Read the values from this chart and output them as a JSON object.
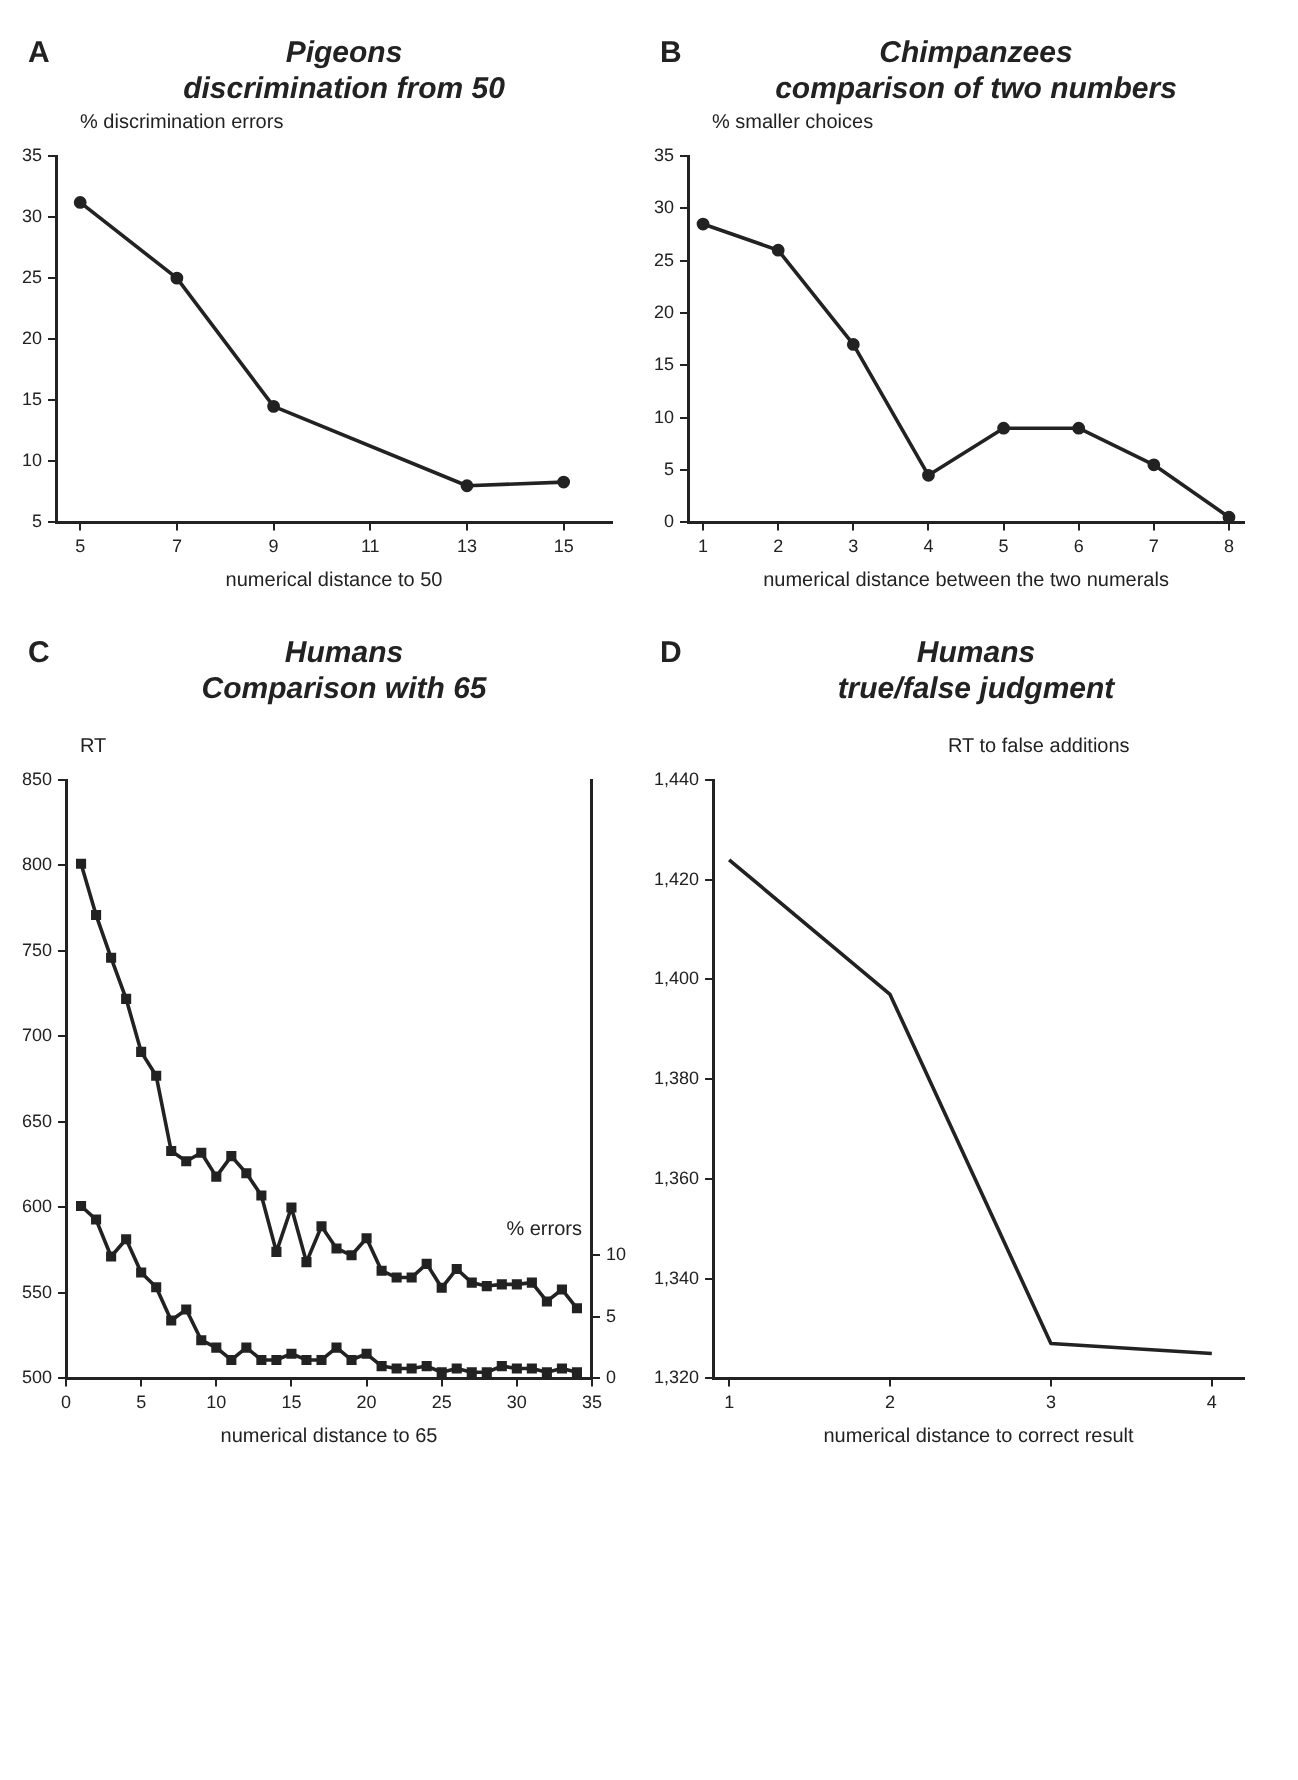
{
  "chart_data": [
    {
      "type": "line",
      "title": "Pigeons",
      "subtitle": "discrimination from 50",
      "ylabel": "% discrimination errors",
      "xlabel": "numerical distance to 50",
      "annotations": [
        "A"
      ],
      "x": [
        5,
        7,
        9,
        13,
        15
      ],
      "series": [
        {
          "color": "#222222",
          "values": [
            31.2,
            25,
            14.5,
            8,
            8.3
          ]
        }
      ],
      "xlim": [
        4.5,
        16
      ],
      "xticks": [
        5,
        7,
        9,
        11,
        13,
        15
      ],
      "ylim": [
        5,
        35
      ],
      "yticks": [
        5,
        10,
        15,
        20,
        25,
        30,
        35
      ],
      "marker": "circle",
      "line_style": "solid"
    },
    {
      "type": "line",
      "title": "Chimpanzees",
      "subtitle": "comparison of two numbers",
      "ylabel": "% smaller choices",
      "xlabel": "numerical distance between the two numerals",
      "annotations": [
        "B"
      ],
      "x": [
        1,
        2,
        3,
        4,
        5,
        6,
        7,
        8
      ],
      "series": [
        {
          "color": "#222222",
          "values": [
            28.5,
            26,
            17,
            4.5,
            9,
            9,
            5.5,
            0.5
          ]
        }
      ],
      "xlim": [
        0.8,
        8.2
      ],
      "xticks": [
        1,
        2,
        3,
        4,
        5,
        6,
        7,
        8
      ],
      "ylim": [
        0,
        35
      ],
      "yticks": [
        0,
        5,
        10,
        15,
        20,
        25,
        30,
        35
      ],
      "marker": "circle",
      "line_style": "solid"
    },
    {
      "type": "line",
      "title": "Humans",
      "subtitle": "Comparison with 65",
      "ylabel": "RT",
      "y2label": "% errors",
      "xlabel": "numerical distance to 65",
      "annotations": [
        "C"
      ],
      "x": [
        1,
        2,
        3,
        4,
        5,
        6,
        7,
        8,
        9,
        10,
        11,
        12,
        13,
        14,
        15,
        16,
        17,
        18,
        19,
        20,
        21,
        22,
        23,
        24,
        25,
        26,
        27,
        28,
        29,
        30,
        31,
        32,
        33,
        34
      ],
      "series": [
        {
          "color": "#222222",
          "values": [
            801,
            771,
            746,
            722,
            691,
            677,
            633,
            627,
            632,
            618,
            630,
            620,
            607,
            574,
            600,
            568,
            589,
            576,
            572,
            582,
            563,
            559,
            559,
            567,
            553,
            564,
            556,
            554,
            555,
            555,
            556,
            545,
            552,
            541
          ]
        },
        {
          "color": "#222222",
          "axis": "y2",
          "values": [
            14,
            12.9,
            9.9,
            11.3,
            8.6,
            7.4,
            4.7,
            5.6,
            3.1,
            2.5,
            1.5,
            2.5,
            1.5,
            1.5,
            2,
            1.5,
            1.5,
            2.5,
            1.5,
            2,
            1,
            0.8,
            0.8,
            1,
            0.5,
            0.8,
            0.5,
            0.5,
            1,
            0.8,
            0.8,
            0.5,
            0.8,
            0.5
          ]
        }
      ],
      "xlim": [
        0,
        35
      ],
      "xticks": [
        0,
        5,
        10,
        15,
        20,
        25,
        30,
        35
      ],
      "ylim": [
        500,
        850
      ],
      "yticks": [
        500,
        550,
        600,
        650,
        700,
        750,
        800,
        850
      ],
      "y2lim": [
        0,
        48.6
      ],
      "y2ticks": [
        0,
        5,
        10
      ],
      "marker": "square",
      "line_style": "solid"
    },
    {
      "type": "line",
      "title": "Humans",
      "subtitle": "true/false judgment",
      "ylabel": "RT to false additions",
      "xlabel": "numerical distance to correct result",
      "annotations": [
        "D"
      ],
      "x": [
        1,
        2,
        3,
        4
      ],
      "series": [
        {
          "color": "#222222",
          "values": [
            1424,
            1397,
            1327,
            1325
          ]
        }
      ],
      "xlim": [
        0.9,
        4.2
      ],
      "xticks": [
        1,
        2,
        3,
        4
      ],
      "ylim": [
        1320,
        1440
      ],
      "yticks": [
        {
          "value": 1320,
          "label": "1,320"
        },
        {
          "value": 1340,
          "label": "1,340"
        },
        {
          "value": 1360,
          "label": "1,360"
        },
        {
          "value": 1380,
          "label": "1,380"
        },
        {
          "value": 1400,
          "label": "1,400"
        },
        {
          "value": 1420,
          "label": "1,420"
        },
        {
          "value": 1440,
          "label": "1,440"
        }
      ],
      "marker": "none",
      "line_style": "solid"
    }
  ]
}
